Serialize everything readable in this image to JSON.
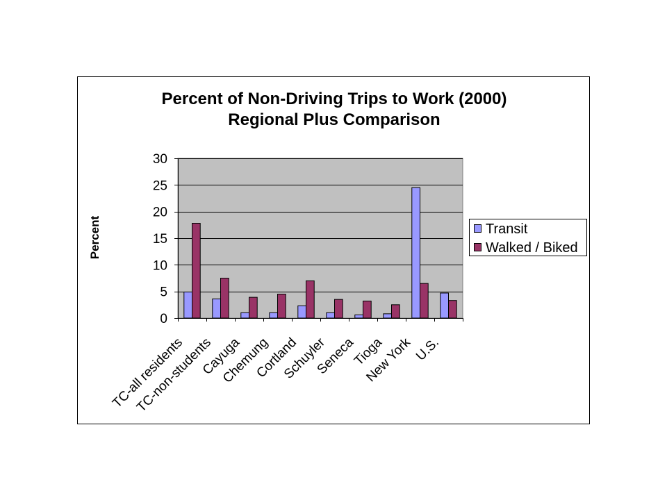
{
  "chart_data": {
    "type": "bar",
    "title": "Percent of Non-Driving Trips to Work (2000)",
    "subtitle": "Regional Plus Comparison",
    "ylabel": "Percent",
    "categories": [
      "TC-all residents",
      "TC-non-students",
      "Cayuga",
      "Chemung",
      "Cortland",
      "Schuyler",
      "Seneca",
      "Tioga",
      "New York",
      "U.S."
    ],
    "series": [
      {
        "name": "Transit",
        "color": "#9999FF",
        "values": [
          4.9,
          3.6,
          1.0,
          1.0,
          2.3,
          1.0,
          0.6,
          0.8,
          24.5,
          4.7
        ]
      },
      {
        "name": "Walked / Biked",
        "color": "#993366",
        "values": [
          17.8,
          7.5,
          3.9,
          4.5,
          7.0,
          3.5,
          3.2,
          2.5,
          6.5,
          3.3
        ]
      }
    ],
    "ylim": [
      0,
      30
    ],
    "y_ticks": [
      0,
      5,
      10,
      15,
      20,
      25,
      30
    ],
    "grid": true,
    "legend_position": "right",
    "plot_background": "#C0C0C0"
  }
}
